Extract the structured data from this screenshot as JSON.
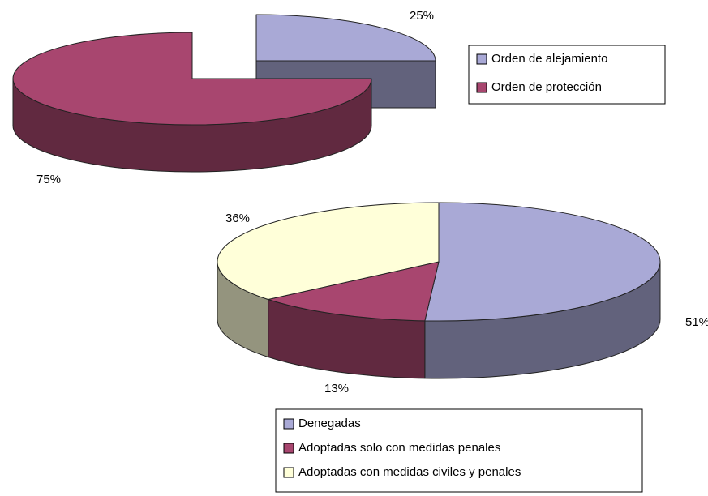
{
  "chart_data": [
    {
      "type": "pie",
      "categories": [
        "Orden de alejamiento",
        "Orden de protección"
      ],
      "values": [
        25,
        75
      ],
      "value_labels": [
        "25%",
        "75%"
      ],
      "colors": [
        "#a9a9d6",
        "#a8466f"
      ]
    },
    {
      "type": "pie",
      "categories": [
        "Denegadas",
        "Adoptadas solo con medidas penales",
        "Adoptadas con medidas civiles y penales"
      ],
      "values": [
        51,
        13,
        36
      ],
      "value_labels": [
        "51%",
        "13%",
        "36%"
      ],
      "colors": [
        "#a9a9d6",
        "#a8466f",
        "#ffffd9"
      ]
    }
  ]
}
